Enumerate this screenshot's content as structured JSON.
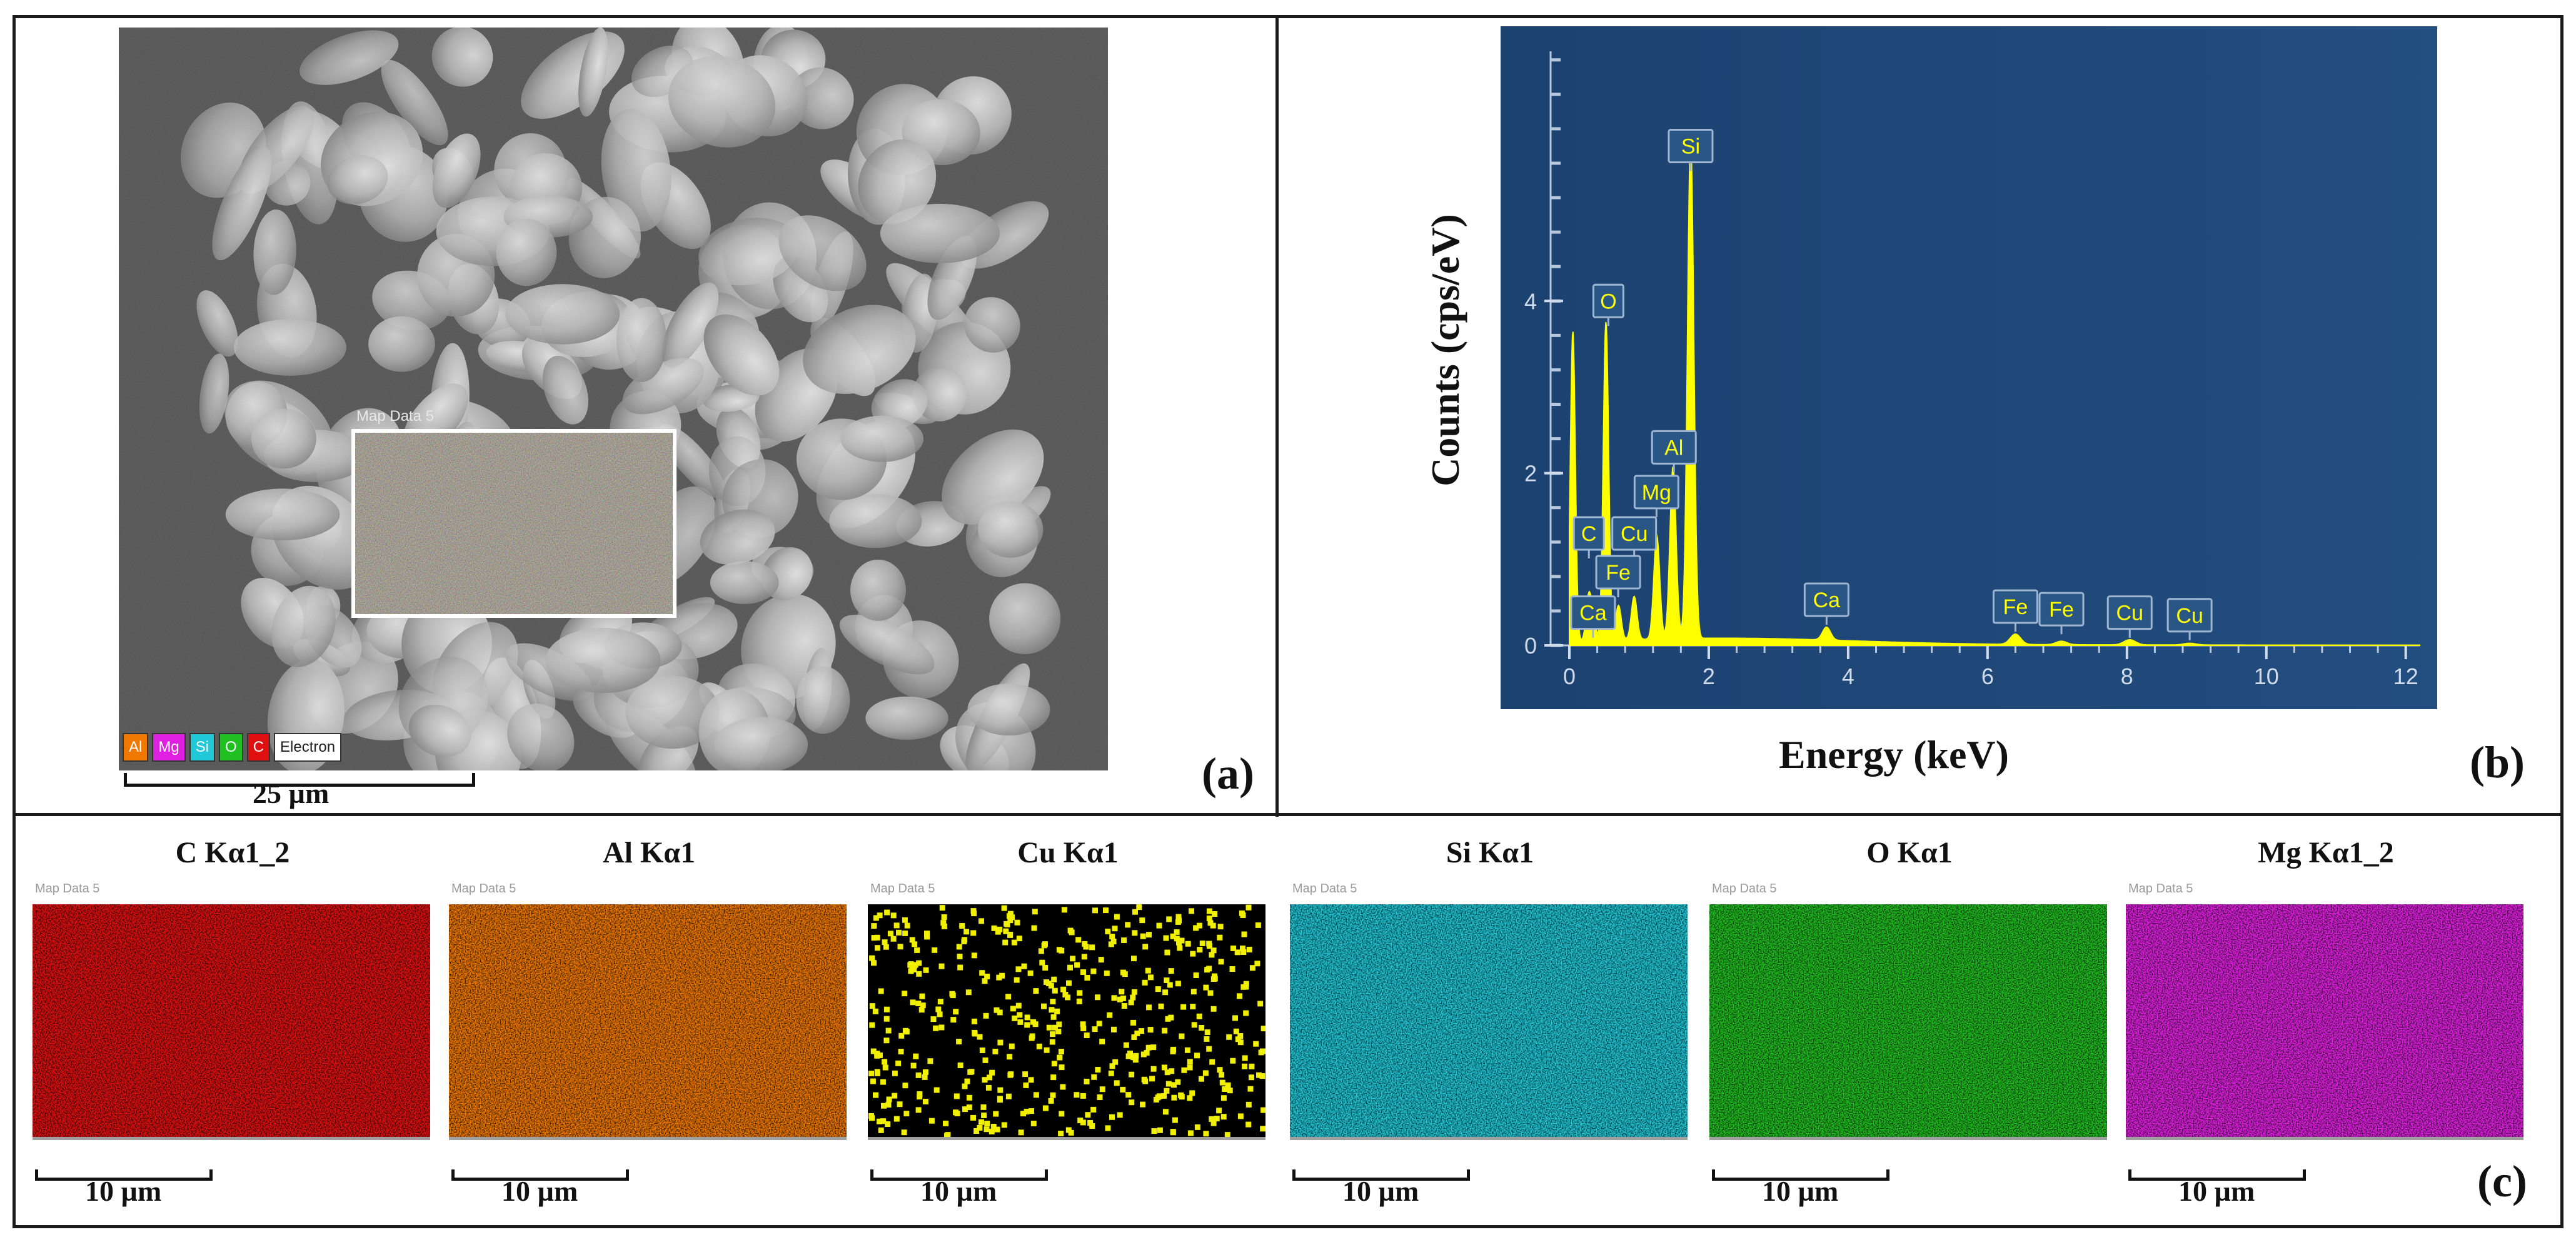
{
  "panels": {
    "a": "(a)",
    "b": "(b)",
    "c": "(c)"
  },
  "sem": {
    "inset_caption": "Map Data 5",
    "legend": [
      {
        "label": "Al",
        "color": "#f07800"
      },
      {
        "label": "Mg",
        "color": "#e020e0"
      },
      {
        "label": "Si",
        "color": "#20c8d8"
      },
      {
        "label": "O",
        "color": "#20c020"
      },
      {
        "label": "C",
        "color": "#e01010"
      },
      {
        "label": "Electron",
        "color": "#ffffff"
      }
    ],
    "scale_label": "25 µm"
  },
  "chart_data": {
    "type": "line",
    "title": "",
    "xlabel": "Energy (keV)",
    "ylabel": "Counts (cps/eV)",
    "xlim": [
      0,
      12.2
    ],
    "ylim": [
      0,
      6.9
    ],
    "xticks": [
      0,
      2,
      4,
      6,
      8,
      10,
      12
    ],
    "yticks": [
      0,
      2,
      4
    ],
    "background": "#1d4470",
    "line_color": "#ffff00",
    "grid": false,
    "peaks": [
      {
        "energy": 0.05,
        "height": 3.6
      },
      {
        "energy": 0.277,
        "height": 0.5
      },
      {
        "energy": 0.341,
        "height": 0.25
      },
      {
        "energy": 0.525,
        "height": 3.7
      },
      {
        "energy": 0.705,
        "height": 0.4
      },
      {
        "energy": 0.93,
        "height": 0.5
      },
      {
        "energy": 1.254,
        "height": 1.2
      },
      {
        "energy": 1.487,
        "height": 2.0
      },
      {
        "energy": 1.74,
        "height": 5.8
      },
      {
        "energy": 3.69,
        "height": 0.15
      },
      {
        "energy": 6.4,
        "height": 0.12
      },
      {
        "energy": 7.06,
        "height": 0.04
      },
      {
        "energy": 8.04,
        "height": 0.06
      },
      {
        "energy": 8.9,
        "height": 0.02
      }
    ],
    "peak_labels": [
      {
        "text": "Si",
        "energy": 1.74,
        "value": 5.8
      },
      {
        "text": "O",
        "energy": 0.56,
        "value": 4.0
      },
      {
        "text": "Al",
        "energy": 1.5,
        "value": 2.3
      },
      {
        "text": "Mg",
        "energy": 1.25,
        "value": 1.78
      },
      {
        "text": "C",
        "energy": 0.28,
        "value": 1.3
      },
      {
        "text": "Cu",
        "energy": 0.93,
        "value": 1.3
      },
      {
        "text": "Fe",
        "energy": 0.7,
        "value": 0.85
      },
      {
        "text": "Ca",
        "energy": 0.34,
        "value": 0.38
      },
      {
        "text": "Ca",
        "energy": 3.69,
        "value": 0.53
      },
      {
        "text": "Fe",
        "energy": 6.4,
        "value": 0.45
      },
      {
        "text": "Fe",
        "energy": 7.06,
        "value": 0.42
      },
      {
        "text": "Cu",
        "energy": 8.04,
        "value": 0.38
      },
      {
        "text": "Cu",
        "energy": 8.9,
        "value": 0.35
      }
    ]
  },
  "maps": [
    {
      "title": "C Kα1_2",
      "caption": "Map Data 5",
      "color": "#e01010",
      "scale_label": "10 µm"
    },
    {
      "title": "Al Kα1",
      "caption": "Map Data 5",
      "color": "#f07800",
      "scale_label": "10 µm"
    },
    {
      "title": "Cu Kα1",
      "caption": "Map Data 5",
      "color": "#f0f000",
      "scale_label": "10 µm"
    },
    {
      "title": "Si Kα1",
      "caption": "Map Data 5",
      "color": "#20c8d8",
      "scale_label": "10 µm"
    },
    {
      "title": "O Kα1",
      "caption": "Map Data 5",
      "color": "#20c020",
      "scale_label": "10 µm"
    },
    {
      "title": "Mg Kα1_2",
      "caption": "Map Data 5",
      "color": "#e020e0",
      "scale_label": "10 µm"
    }
  ]
}
